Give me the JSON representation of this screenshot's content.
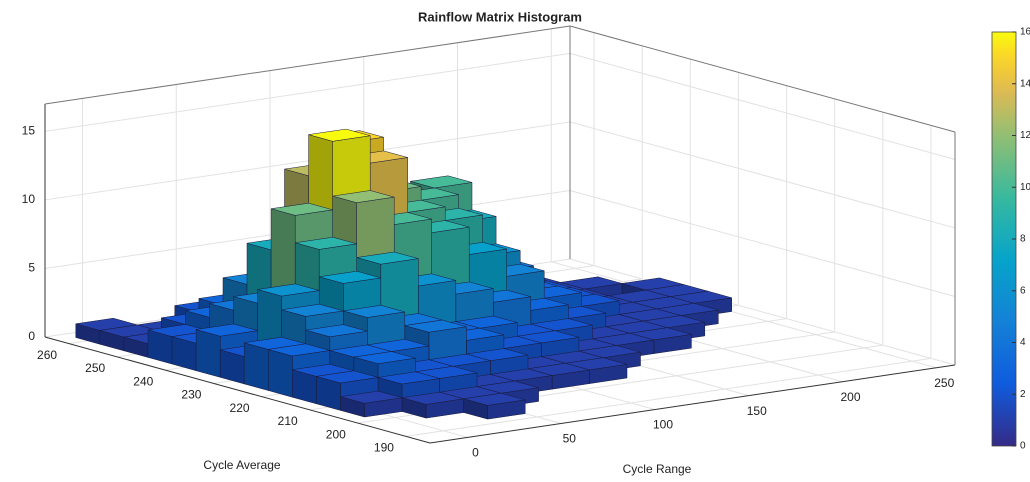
{
  "chart_data": {
    "type": "hist3d",
    "title": "Rainflow Matrix Histogram",
    "xlabel": "Cycle Average",
    "ylabel": "Cycle Range",
    "xlim": [
      185,
      265
    ],
    "xticks": [
      190,
      200,
      210,
      220,
      230,
      240,
      250,
      260
    ],
    "ylim": [
      -20,
      260
    ],
    "yticks": [
      0,
      50,
      100,
      150,
      200,
      250
    ],
    "zlim": [
      0,
      17
    ],
    "zticks": [
      0,
      5,
      10,
      15
    ],
    "x_bins": [
      187.5,
      192.5,
      197.5,
      202.5,
      207.5,
      212.5,
      217.5,
      222.5,
      227.5,
      232.5,
      237.5,
      242.5,
      247.5,
      252.5,
      257.5,
      262.5
    ],
    "y_bins": [
      -10,
      10,
      30,
      50,
      70,
      90,
      110,
      130,
      150,
      170,
      190,
      210,
      230,
      250
    ],
    "counts": [
      [
        0,
        0,
        0,
        0,
        0,
        0,
        0,
        0,
        0,
        0,
        0,
        0,
        0
      ],
      [
        0,
        0,
        1,
        0,
        0,
        0,
        0,
        0,
        0,
        0,
        0,
        0,
        0
      ],
      [
        0,
        1,
        1,
        1,
        0,
        0,
        0,
        0,
        0,
        0,
        0,
        0,
        0
      ],
      [
        1,
        2,
        2,
        1,
        1,
        1,
        1,
        0,
        0,
        0,
        0,
        0,
        0
      ],
      [
        2,
        3,
        2,
        2,
        2,
        1,
        1,
        1,
        0,
        0,
        0,
        0,
        0
      ],
      [
        2,
        3,
        3,
        4,
        3,
        2,
        2,
        1,
        1,
        1,
        0,
        0,
        0
      ],
      [
        3,
        4,
        5,
        4,
        3,
        3,
        2,
        2,
        1,
        1,
        1,
        0,
        0
      ],
      [
        3,
        5,
        7,
        8,
        6,
        5,
        4,
        3,
        2,
        1,
        1,
        1,
        0
      ],
      [
        2,
        6,
        9,
        12,
        10,
        9,
        7,
        5,
        3,
        2,
        1,
        1,
        1
      ],
      [
        3,
        5,
        11,
        16,
        14,
        10,
        9,
        6,
        3,
        2,
        1,
        1,
        1
      ],
      [
        2,
        4,
        8,
        13,
        15,
        11,
        10,
        8,
        4,
        2,
        1,
        0,
        1
      ],
      [
        2,
        3,
        5,
        7,
        9,
        8,
        9,
        10,
        4,
        2,
        1,
        1,
        0
      ],
      [
        1,
        2,
        3,
        4,
        4,
        3,
        3,
        2,
        2,
        1,
        1,
        0,
        0
      ],
      [
        1,
        1,
        2,
        2,
        1,
        1,
        1,
        1,
        0,
        0,
        0,
        0,
        0
      ],
      [
        1,
        0,
        0,
        0,
        0,
        0,
        0,
        0,
        0,
        0,
        0,
        0,
        0
      ]
    ],
    "colormap": "parula",
    "clim": [
      0,
      16
    ],
    "cticks": [
      0,
      2,
      4,
      6,
      8,
      10,
      12,
      14,
      16
    ],
    "grid": true
  }
}
